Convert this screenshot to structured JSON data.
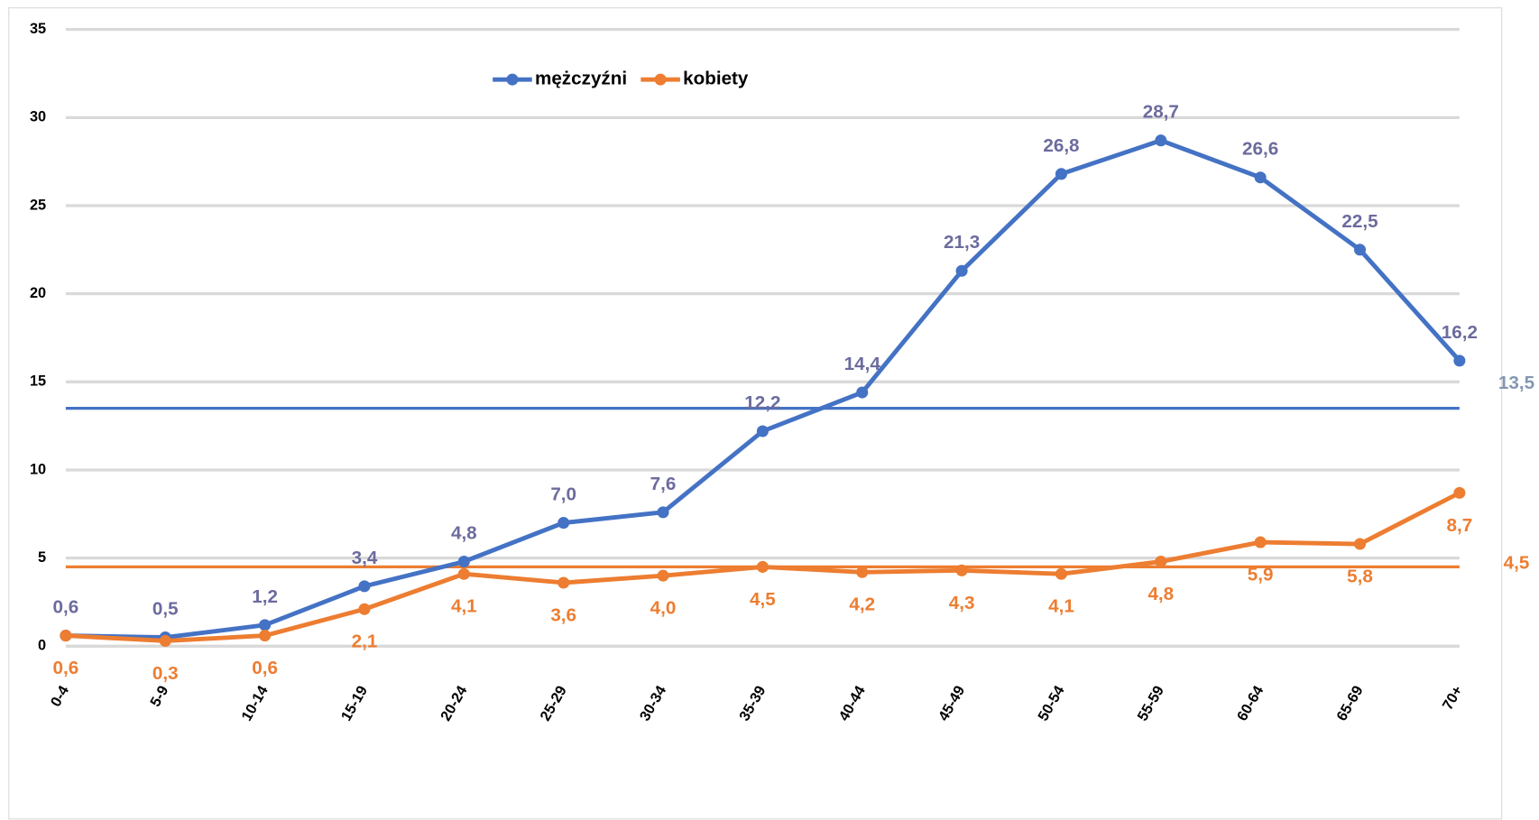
{
  "chart_data": {
    "type": "line",
    "categories": [
      "0-4",
      "5-9",
      "10-14",
      "15-19",
      "20-24",
      "25-29",
      "30-34",
      "35-39",
      "40-44",
      "45-49",
      "50-54",
      "55-59",
      "60-64",
      "65-69",
      "70+"
    ],
    "series": [
      {
        "name": "mężczyźni",
        "color": "#4472c4",
        "label_color": "#6b6b9e",
        "values": [
          0.6,
          0.5,
          1.2,
          3.4,
          4.8,
          7.0,
          7.6,
          12.2,
          14.4,
          21.3,
          26.8,
          28.7,
          26.6,
          22.5,
          16.2
        ],
        "value_labels": [
          "0,6",
          "0,5",
          "1,2",
          "3,4",
          "4,8",
          "7,0",
          "7,6",
          "12,2",
          "14,4",
          "21,3",
          "26,8",
          "28,7",
          "26,6",
          "22,5",
          "16,2"
        ]
      },
      {
        "name": "kobiety",
        "color": "#ed7d31",
        "label_color": "#ed7d31",
        "values": [
          0.6,
          0.3,
          0.6,
          2.1,
          4.1,
          3.6,
          4.0,
          4.5,
          4.2,
          4.3,
          4.1,
          4.8,
          5.9,
          5.8,
          8.7
        ],
        "value_labels": [
          "0,6",
          "0,3",
          "0,6",
          "2,1",
          "4,1",
          "3,6",
          "4,0",
          "4,5",
          "4,2",
          "4,3",
          "4,1",
          "4,8",
          "5,9",
          "5,8",
          "8,7"
        ]
      }
    ],
    "reference_lines": [
      {
        "value": 13.5,
        "label": "13,5",
        "color": "#4472c4",
        "label_color": "#8497b0"
      },
      {
        "value": 4.5,
        "label": "4,5",
        "color": "#ed7d31",
        "label_color": "#ed7d31"
      }
    ],
    "ylim": [
      0,
      35
    ],
    "yticks": [
      0,
      5,
      10,
      15,
      20,
      25,
      30,
      35
    ],
    "grid": true,
    "legend": "top"
  }
}
